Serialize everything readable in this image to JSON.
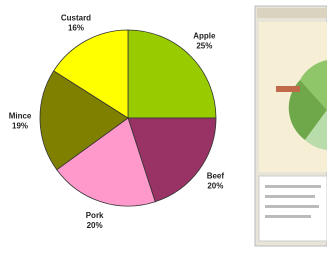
{
  "chart_data": {
    "type": "pie",
    "categories": [
      "Apple",
      "Beef",
      "Pork",
      "Mince",
      "Custard"
    ],
    "values": [
      25,
      20,
      20,
      19,
      16
    ],
    "value_labels": [
      "25%",
      "20%",
      "20%",
      "19%",
      "16%"
    ],
    "colors": [
      "#99cc00",
      "#993366",
      "#ff99cc",
      "#808000",
      "#ffff00"
    ]
  }
}
